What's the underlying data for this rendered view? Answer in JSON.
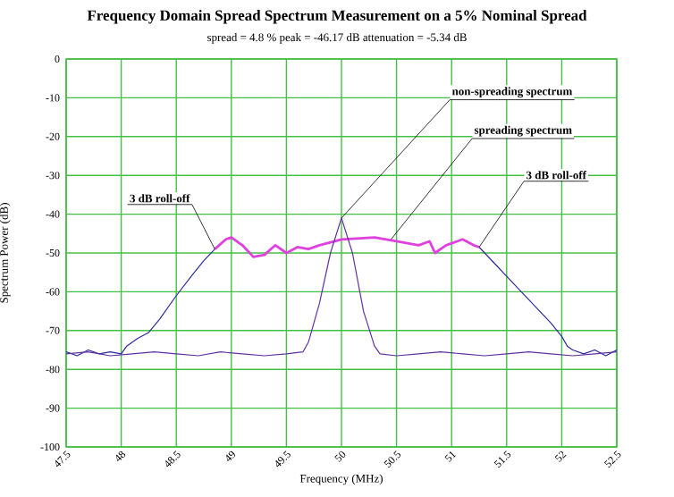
{
  "chart_data": {
    "type": "line",
    "title": "Frequency Domain Spread Spectrum Measurement on a 5% Nominal Spread",
    "subtitle": "spread = 4.8 %  peak = -46.17 dB  attenuation = -5.34 dB",
    "xlabel": "Frequency (MHz)",
    "ylabel": "Spectrum Power (dB)",
    "xlim": [
      47.5,
      52.5
    ],
    "ylim": [
      -100,
      0
    ],
    "xticks": [
      47.5,
      48,
      48.5,
      49,
      49.5,
      50,
      50.5,
      51,
      51.5,
      52,
      52.5
    ],
    "yticks": [
      -100,
      -90,
      -80,
      -70,
      -60,
      -50,
      -40,
      -30,
      -20,
      -10,
      0
    ],
    "grid": true,
    "legend": false,
    "series": [
      {
        "color": "#2a2aa0",
        "x": [
          47.5,
          47.6,
          47.7,
          47.8,
          47.9,
          48.0,
          48.05,
          48.15,
          48.25,
          48.35,
          48.5,
          48.65,
          48.75,
          48.85,
          50.0,
          51.25,
          51.4,
          51.5,
          51.6,
          51.7,
          51.8,
          51.9,
          52.0,
          52.05,
          52.1,
          52.2,
          52.3,
          52.4,
          52.5
        ],
        "values": [
          -75.5,
          -76.5,
          -75,
          -76,
          -75.5,
          -76,
          -74,
          -72,
          -70.5,
          -67,
          -61,
          -55.5,
          -52,
          -49,
          null,
          -48.5,
          -53,
          -56,
          -59,
          -62,
          -65,
          -68,
          -71.5,
          -74,
          -75,
          -76,
          -75,
          -76.5,
          -75
        ]
      },
      {
        "name": "spreading spectrum",
        "color": "#e040e0",
        "x": [
          48.85,
          48.95,
          49.0,
          49.1,
          49.2,
          49.3,
          49.4,
          49.5,
          49.6,
          49.7,
          49.8,
          50.0,
          50.3,
          50.5,
          50.6,
          50.7,
          50.8,
          50.85,
          50.95,
          51.05,
          51.1,
          51.2,
          51.25
        ],
        "values": [
          -49,
          -46.5,
          -46,
          -48,
          -51,
          -50.5,
          -48,
          -50,
          -48.5,
          -49,
          -48,
          -46.5,
          -46,
          -47,
          -47.5,
          -48,
          -47,
          -50,
          -48,
          -47,
          -46.5,
          -48,
          -48.5
        ]
      },
      {
        "name": "non-spreading spectrum",
        "color": "#6030a0",
        "x": [
          47.5,
          47.7,
          47.9,
          48.1,
          48.3,
          48.5,
          48.7,
          48.9,
          49.1,
          49.3,
          49.5,
          49.65,
          49.7,
          49.8,
          49.9,
          50.0,
          50.1,
          50.2,
          50.3,
          50.35,
          50.5,
          50.7,
          50.9,
          51.1,
          51.3,
          51.5,
          51.7,
          51.9,
          52.1,
          52.3,
          52.5
        ],
        "values": [
          -76,
          -75.5,
          -76.5,
          -76,
          -75.5,
          -76,
          -76.5,
          -75.5,
          -76,
          -76.5,
          -76,
          -75.5,
          -73,
          -63,
          -50,
          -41,
          -50,
          -65,
          -74,
          -76,
          -76.5,
          -76,
          -75.5,
          -76,
          -76.5,
          -76,
          -75.5,
          -76,
          -76.5,
          -76,
          -75.5
        ]
      }
    ],
    "annotations": [
      {
        "text": "3 dB roll-off",
        "x": 48.85,
        "y": -49
      },
      {
        "text": "3 dB roll-off",
        "x": 51.25,
        "y": -48.5
      }
    ]
  }
}
